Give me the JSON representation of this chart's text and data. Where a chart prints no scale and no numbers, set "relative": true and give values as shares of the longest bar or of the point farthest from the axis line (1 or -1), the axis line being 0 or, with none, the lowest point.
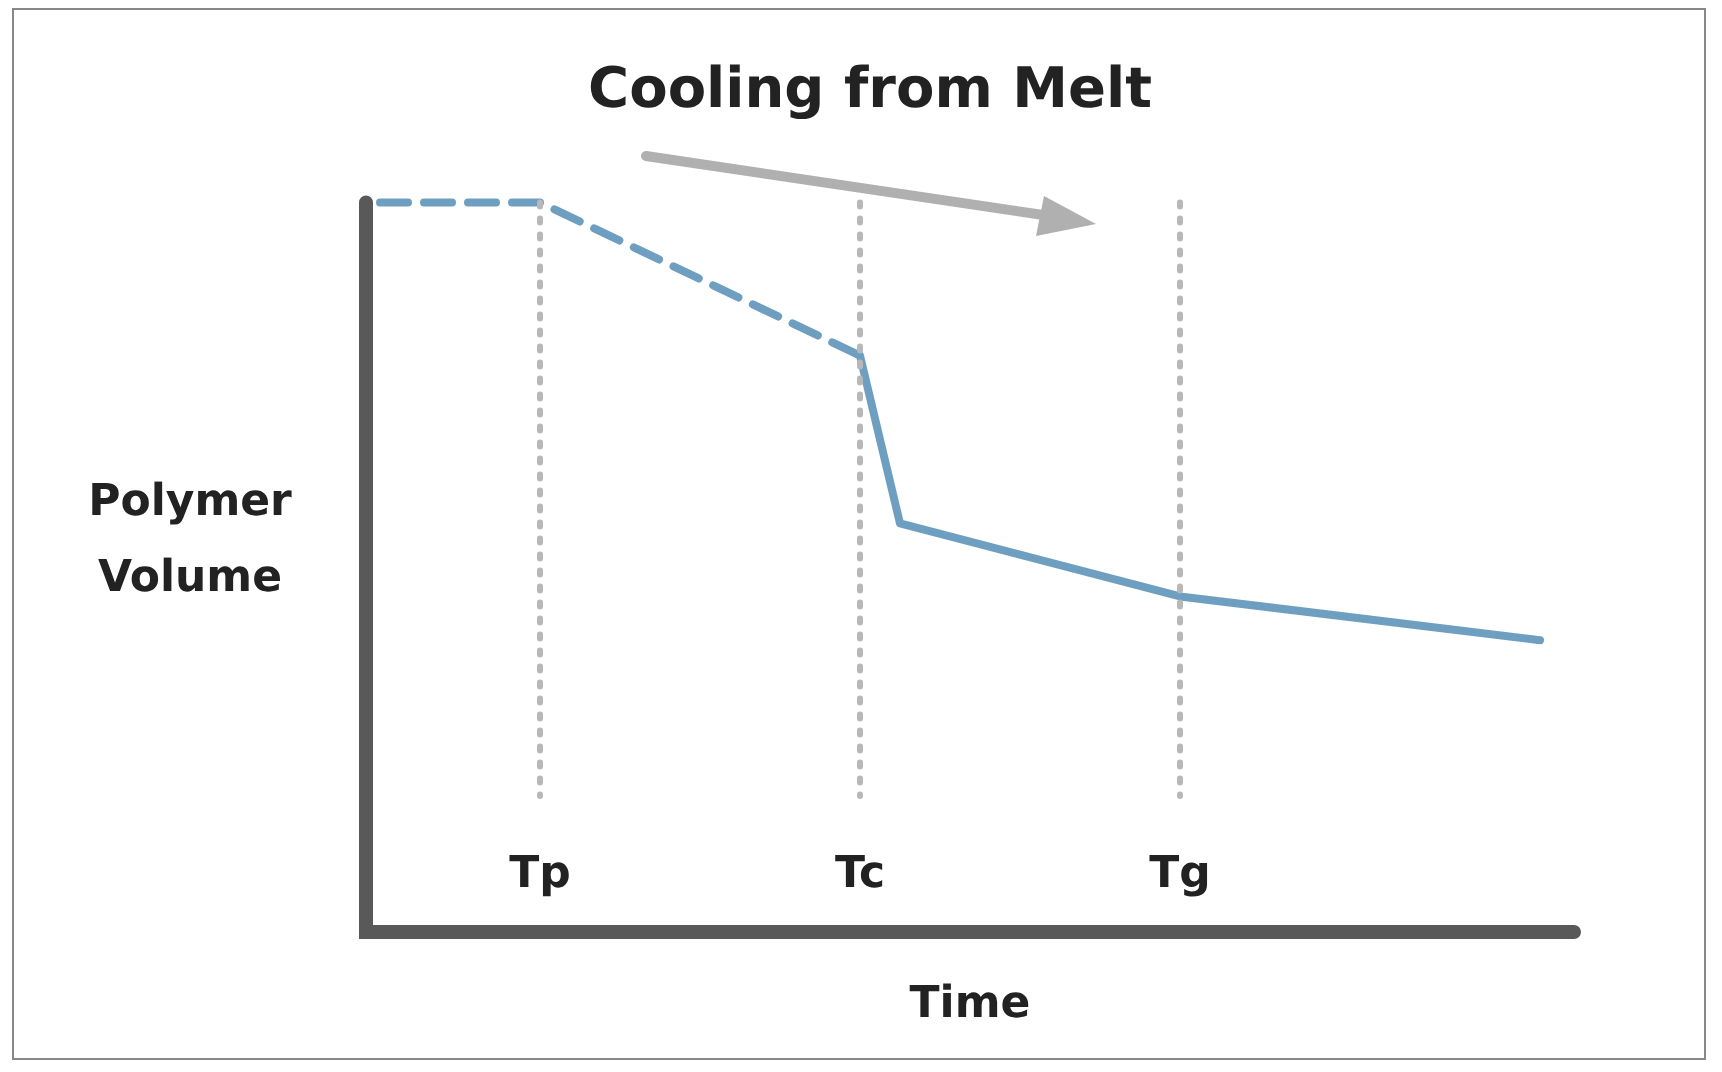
{
  "chart_data": {
    "type": "line",
    "title": "Cooling from Melt",
    "xlabel": "Time",
    "ylabel": "Polymer Volume",
    "relative": true,
    "legend": false,
    "marker": "none",
    "categories": [
      null,
      null,
      null,
      null,
      "Tp",
      null,
      null,
      null,
      null,
      null,
      null,
      null,
      "Tc",
      null,
      null,
      null,
      null,
      null,
      null,
      null,
      "Tg",
      null,
      null,
      null,
      null,
      null,
      null,
      null,
      null,
      null
    ],
    "series": [
      {
        "color": "#6f9fc0",
        "line_style": "dashed",
        "values": [
          1,
          null,
          null,
          null,
          1,
          null,
          null,
          null,
          null,
          null,
          null,
          null,
          0.79,
          null,
          null,
          null,
          null,
          null,
          null,
          null,
          null,
          null,
          null,
          null,
          null,
          null,
          null,
          null,
          null,
          null
        ]
      },
      {
        "color": "#6f9fc0",
        "line_style": "solid",
        "values": [
          null,
          null,
          null,
          null,
          null,
          null,
          null,
          null,
          null,
          null,
          null,
          null,
          0.79,
          0.56,
          null,
          null,
          null,
          null,
          null,
          null,
          0.46,
          null,
          null,
          null,
          null,
          null,
          null,
          null,
          null,
          0.4
        ]
      }
    ],
    "ref_lines": [
      {
        "axis": "x",
        "value": "Tp",
        "color": "#b8b8b8",
        "line_style": "dotted"
      },
      {
        "axis": "x",
        "value": "Tc",
        "color": "#b8b8b8",
        "line_style": "dotted"
      },
      {
        "axis": "x",
        "value": "Tg",
        "color": "#b8b8b8",
        "line_style": "dotted"
      }
    ]
  }
}
